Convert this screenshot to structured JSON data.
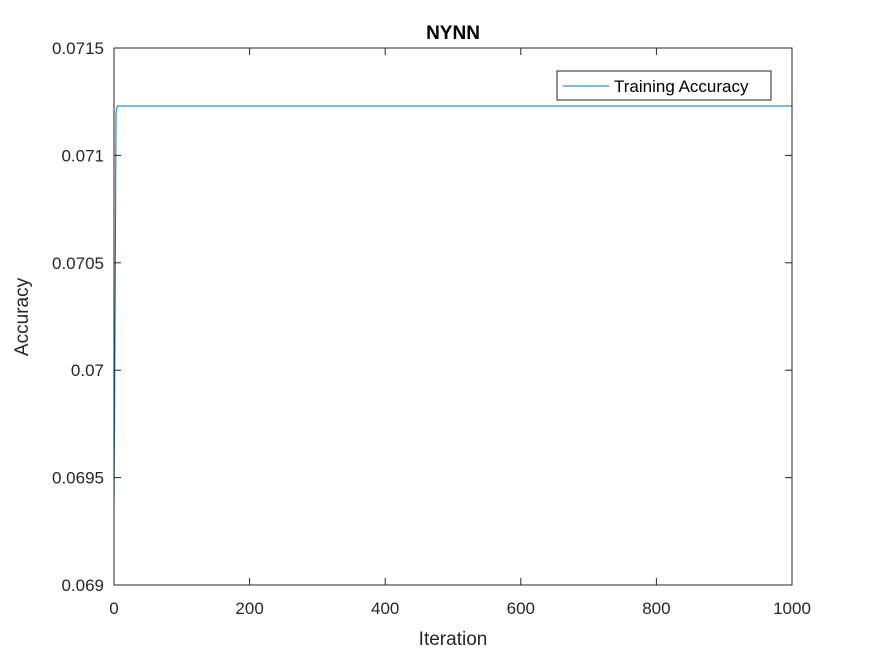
{
  "chart_data": {
    "type": "line",
    "title": "NYNN",
    "xlabel": "Iteration",
    "ylabel": "Accuracy",
    "xlim": [
      0,
      1000
    ],
    "ylim": [
      0.069,
      0.0715
    ],
    "xticks": [
      "0",
      "200",
      "400",
      "600",
      "800",
      "1000"
    ],
    "yticks": [
      "0.069",
      "0.0695",
      "0.07",
      "0.0705",
      "0.071",
      "0.0715"
    ],
    "grid": false,
    "legend_position": "top-right",
    "series": [
      {
        "name": "Training Accuracy",
        "color": "#0072BD",
        "x": [
          0,
          1,
          2,
          3,
          5,
          10,
          50,
          100,
          200,
          300,
          400,
          500,
          600,
          700,
          800,
          900,
          1000
        ],
        "y": [
          0.06934,
          0.06985,
          0.0705,
          0.0712,
          0.07123,
          0.07123,
          0.07123,
          0.07123,
          0.07123,
          0.07123,
          0.07123,
          0.07123,
          0.07123,
          0.07123,
          0.07123,
          0.07123,
          0.07123
        ]
      }
    ]
  }
}
